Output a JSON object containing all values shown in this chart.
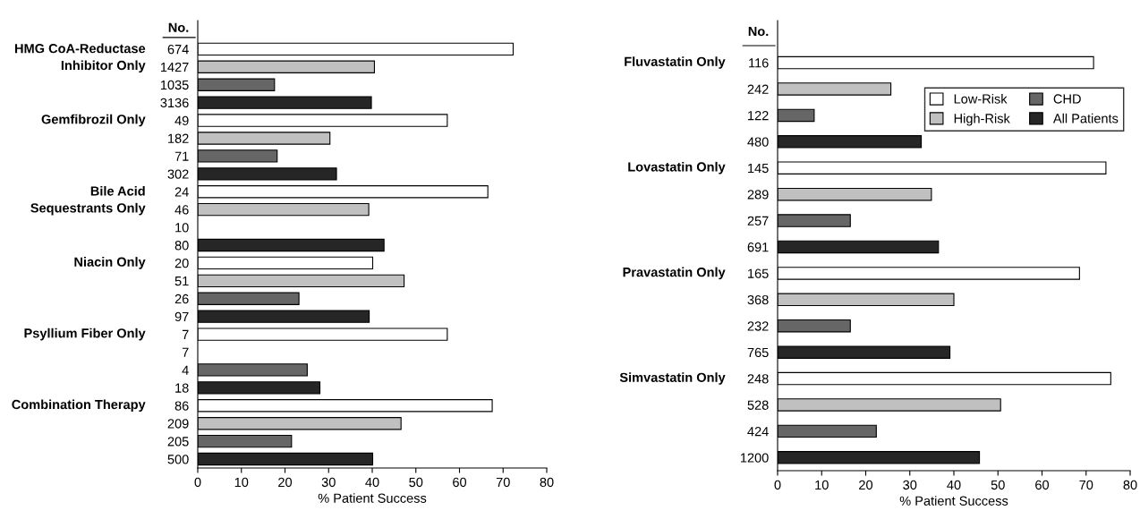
{
  "chart_data": [
    {
      "type": "bar",
      "orientation": "horizontal",
      "xlabel": "% Patient Success",
      "ylabel": "No.",
      "categories": [
        "674",
        "1427",
        "1035",
        "3136",
        "49",
        "182",
        "71",
        "302",
        "24",
        "46",
        "10",
        "80",
        "20",
        "51",
        "26",
        "97",
        "7",
        "7",
        "4",
        "18",
        "86",
        "209",
        "205",
        "500"
      ],
      "series": [
        {
          "color": "#ffffff",
          "values": [
            72.3,
            null,
            null,
            null,
            57.2,
            null,
            null,
            null,
            66.5,
            null,
            null,
            null,
            40.1,
            null,
            null,
            null,
            57.2,
            null,
            null,
            null,
            67.5,
            null,
            null,
            null
          ]
        },
        {
          "color": "#c0c0c0",
          "values": [
            null,
            40.5,
            null,
            null,
            null,
            30.3,
            null,
            null,
            null,
            39.2,
            null,
            null,
            null,
            47.3,
            null,
            null,
            null,
            null,
            null,
            null,
            null,
            46.6,
            null,
            null
          ]
        },
        {
          "color": "#666666",
          "values": [
            null,
            null,
            17.6,
            null,
            null,
            null,
            18.2,
            null,
            null,
            null,
            null,
            null,
            null,
            null,
            23.2,
            null,
            null,
            null,
            25.1,
            null,
            null,
            null,
            21.5,
            null
          ]
        },
        {
          "color": "#262626",
          "values": [
            null,
            null,
            null,
            39.8,
            null,
            null,
            null,
            31.8,
            null,
            null,
            null,
            42.7,
            null,
            null,
            null,
            39.3,
            null,
            null,
            null,
            28.0,
            null,
            null,
            null,
            40.1
          ]
        }
      ],
      "xlim": [
        0,
        80
      ],
      "xticks": [
        0,
        10,
        20,
        30,
        40,
        50,
        60,
        70,
        80
      ],
      "annotations": [
        "HMG CoA-Reductase\nInhibitor Only",
        "Gemfibrozil Only",
        "Bile Acid\nSequestrants Only",
        "Niacin Only",
        "Psyllium Fiber Only",
        "Combination Therapy"
      ]
    },
    {
      "type": "bar",
      "orientation": "horizontal",
      "xlabel": "% Patient Success",
      "ylabel": "No.",
      "categories": [
        "116",
        "242",
        "122",
        "480",
        "145",
        "289",
        "257",
        "691",
        "165",
        "368",
        "232",
        "765",
        "248",
        "528",
        "424",
        "1200"
      ],
      "series": [
        {
          "name": "Low-Risk",
          "color": "#ffffff",
          "values": [
            71.7,
            null,
            null,
            null,
            74.5,
            null,
            null,
            null,
            68.5,
            null,
            null,
            null,
            75.6,
            null,
            null,
            null
          ]
        },
        {
          "name": "High-Risk",
          "color": "#c0c0c0",
          "values": [
            null,
            25.7,
            null,
            null,
            null,
            34.9,
            null,
            null,
            null,
            40.0,
            null,
            null,
            null,
            50.6,
            null,
            null
          ]
        },
        {
          "name": "CHD",
          "color": "#666666",
          "values": [
            null,
            null,
            8.3,
            null,
            null,
            null,
            16.5,
            null,
            null,
            null,
            16.5,
            null,
            null,
            null,
            22.4,
            null
          ]
        },
        {
          "name": "All Patients",
          "color": "#262626",
          "values": [
            null,
            null,
            null,
            32.6,
            null,
            null,
            null,
            36.5,
            null,
            null,
            null,
            39.1,
            null,
            null,
            null,
            45.8
          ]
        }
      ],
      "xlim": [
        0,
        80
      ],
      "xticks": [
        0,
        10,
        20,
        30,
        40,
        50,
        60,
        70,
        80
      ],
      "legend": "top right",
      "annotations": [
        "Fluvastatin Only",
        "Lovastatin Only",
        "Pravastatin Only",
        "Simvastatin Only"
      ]
    }
  ]
}
